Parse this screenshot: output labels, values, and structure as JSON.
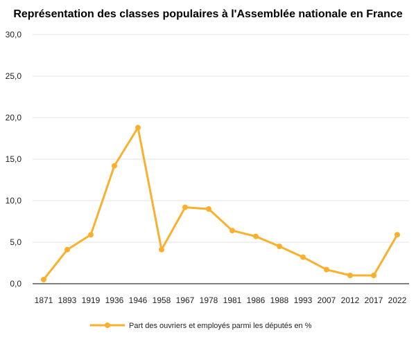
{
  "chart_data": {
    "type": "line",
    "title": "Représentation des classes populaires à l'Assemblée nationale en France",
    "xlabel": "",
    "ylabel": "",
    "categories": [
      "1871",
      "1893",
      "1919",
      "1936",
      "1946",
      "1958",
      "1967",
      "1978",
      "1981",
      "1986",
      "1988",
      "1993",
      "2007",
      "2012",
      "2017",
      "2022"
    ],
    "series": [
      {
        "name": "Part des ouvriers et employés parmi les députés en %",
        "color": "#FBB02D",
        "values": [
          0.5,
          4.1,
          5.9,
          14.2,
          18.8,
          4.1,
          9.2,
          9.0,
          6.4,
          5.7,
          4.5,
          3.2,
          1.7,
          1.0,
          1.0,
          5.9
        ]
      }
    ],
    "ylim": [
      0,
      30
    ],
    "yticks": [
      "0,0",
      "5,0",
      "10,0",
      "15,0",
      "20,0",
      "25,0",
      "30,0"
    ],
    "grid": true,
    "legend_position": "bottom"
  }
}
